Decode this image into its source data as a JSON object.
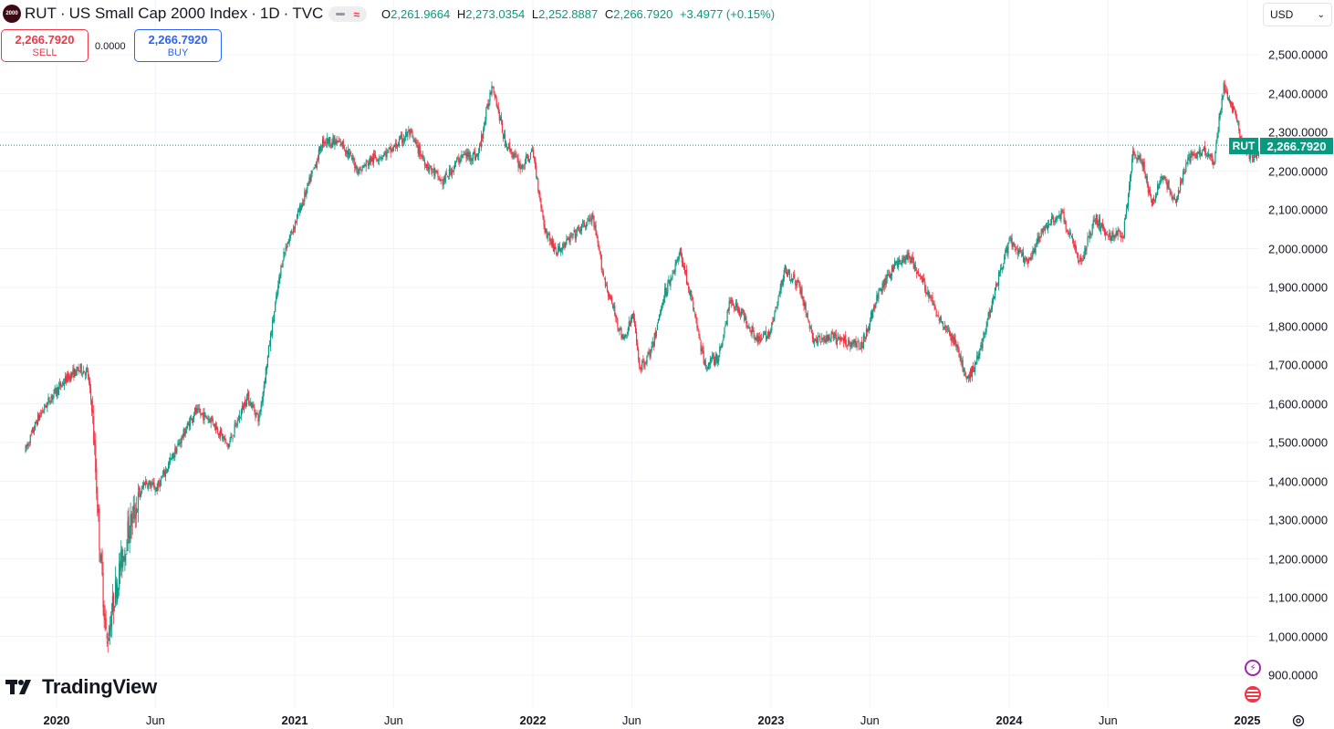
{
  "header": {
    "logo_text": "2000",
    "symbol": "RUT",
    "name": "US Small Cap 2000 Index",
    "interval": "1D",
    "exchange": "TVC",
    "separator": "·",
    "ohlc": {
      "o_label": "O",
      "o": "2,261.9664",
      "h_label": "H",
      "h": "2,273.0354",
      "l_label": "L",
      "l": "2,252.8887",
      "c_label": "C",
      "c": "2,266.7920",
      "change": "+3.4977 (+0.15%)"
    }
  },
  "trade": {
    "sell_price": "2,266.7920",
    "sell_label": "SELL",
    "spread": "0.0000",
    "buy_price": "2,266.7920",
    "buy_label": "BUY"
  },
  "currency": {
    "value": "USD"
  },
  "brand": {
    "name": "TradingView"
  },
  "last_price_label": {
    "symbol": "RUT",
    "price": "2,266.7920"
  },
  "colors": {
    "up": "#089981",
    "down": "#f23645",
    "grid": "#f0f3fa",
    "text": "#131722"
  },
  "chart_data": {
    "type": "candlestick",
    "title": "RUT · US Small Cap 2000 Index · 1D · TVC",
    "ylim": [
      850,
      2560
    ],
    "y_ticks": [
      900,
      1000,
      1100,
      1200,
      1300,
      1400,
      1500,
      1600,
      1700,
      1800,
      1900,
      2000,
      2100,
      2200,
      2300,
      2400,
      2500
    ],
    "y_tick_labels": [
      "900.0000",
      "1,000.0000",
      "1,100.0000",
      "1,200.0000",
      "1,300.0000",
      "1,400.0000",
      "1,500.0000",
      "1,600.0000",
      "1,700.0000",
      "1,800.0000",
      "1,900.0000",
      "2,000.0000",
      "2,100.0000",
      "2,200.0000",
      "2,300.0000",
      "2,400.0000",
      "2,500.0000"
    ],
    "x_range_years": [
      2019.87,
      2025.08
    ],
    "x_ticks": [
      {
        "t": 2020.0,
        "label": "2020",
        "year": true
      },
      {
        "t": 2020.415,
        "label": "Jun",
        "year": false
      },
      {
        "t": 2021.0,
        "label": "2021",
        "year": true
      },
      {
        "t": 2021.415,
        "label": "Jun",
        "year": false
      },
      {
        "t": 2022.0,
        "label": "2022",
        "year": true
      },
      {
        "t": 2022.415,
        "label": "Jun",
        "year": false
      },
      {
        "t": 2023.0,
        "label": "2023",
        "year": true
      },
      {
        "t": 2023.415,
        "label": "Jun",
        "year": false
      },
      {
        "t": 2024.0,
        "label": "2024",
        "year": true
      },
      {
        "t": 2024.415,
        "label": "Jun",
        "year": false
      },
      {
        "t": 2025.0,
        "label": "2025",
        "year": true
      }
    ],
    "last_price": 2266.792,
    "series_anchors": [
      [
        2019.87,
        1480
      ],
      [
        2019.92,
        1560
      ],
      [
        2019.98,
        1620
      ],
      [
        2020.05,
        1670
      ],
      [
        2020.1,
        1690
      ],
      [
        2020.13,
        1680
      ],
      [
        2020.15,
        1580
      ],
      [
        2020.18,
        1250
      ],
      [
        2020.21,
        980
      ],
      [
        2020.25,
        1130
      ],
      [
        2020.3,
        1270
      ],
      [
        2020.37,
        1400
      ],
      [
        2020.42,
        1380
      ],
      [
        2020.5,
        1480
      ],
      [
        2020.58,
        1580
      ],
      [
        2020.65,
        1560
      ],
      [
        2020.72,
        1490
      ],
      [
        2020.8,
        1620
      ],
      [
        2020.85,
        1560
      ],
      [
        2020.9,
        1780
      ],
      [
        2020.95,
        1980
      ],
      [
        2021.05,
        2150
      ],
      [
        2021.12,
        2280
      ],
      [
        2021.2,
        2270
      ],
      [
        2021.27,
        2200
      ],
      [
        2021.32,
        2230
      ],
      [
        2021.4,
        2250
      ],
      [
        2021.48,
        2300
      ],
      [
        2021.55,
        2220
      ],
      [
        2021.62,
        2170
      ],
      [
        2021.7,
        2240
      ],
      [
        2021.77,
        2240
      ],
      [
        2021.83,
        2430
      ],
      [
        2021.88,
        2280
      ],
      [
        2021.95,
        2210
      ],
      [
        2022.0,
        2250
      ],
      [
        2022.05,
        2050
      ],
      [
        2022.1,
        1990
      ],
      [
        2022.18,
        2040
      ],
      [
        2022.25,
        2080
      ],
      [
        2022.3,
        1920
      ],
      [
        2022.38,
        1760
      ],
      [
        2022.42,
        1830
      ],
      [
        2022.45,
        1690
      ],
      [
        2022.5,
        1740
      ],
      [
        2022.55,
        1880
      ],
      [
        2022.62,
        1990
      ],
      [
        2022.68,
        1830
      ],
      [
        2022.72,
        1700
      ],
      [
        2022.78,
        1720
      ],
      [
        2022.83,
        1870
      ],
      [
        2022.88,
        1830
      ],
      [
        2022.95,
        1760
      ],
      [
        2023.0,
        1790
      ],
      [
        2023.06,
        1950
      ],
      [
        2023.12,
        1900
      ],
      [
        2023.18,
        1760
      ],
      [
        2023.25,
        1770
      ],
      [
        2023.32,
        1760
      ],
      [
        2023.38,
        1750
      ],
      [
        2023.45,
        1880
      ],
      [
        2023.52,
        1960
      ],
      [
        2023.58,
        1980
      ],
      [
        2023.64,
        1910
      ],
      [
        2023.7,
        1830
      ],
      [
        2023.78,
        1750
      ],
      [
        2023.82,
        1655
      ],
      [
        2023.87,
        1720
      ],
      [
        2023.93,
        1870
      ],
      [
        2024.0,
        2020
      ],
      [
        2024.08,
        1960
      ],
      [
        2024.15,
        2060
      ],
      [
        2024.22,
        2090
      ],
      [
        2024.3,
        1960
      ],
      [
        2024.36,
        2080
      ],
      [
        2024.42,
        2030
      ],
      [
        2024.48,
        2040
      ],
      [
        2024.52,
        2250
      ],
      [
        2024.56,
        2220
      ],
      [
        2024.6,
        2110
      ],
      [
        2024.64,
        2190
      ],
      [
        2024.7,
        2120
      ],
      [
        2024.75,
        2230
      ],
      [
        2024.82,
        2260
      ],
      [
        2024.86,
        2220
      ],
      [
        2024.9,
        2420
      ],
      [
        2024.94,
        2360
      ],
      [
        2024.98,
        2270
      ],
      [
        2025.02,
        2230
      ],
      [
        2025.07,
        2267
      ]
    ]
  }
}
